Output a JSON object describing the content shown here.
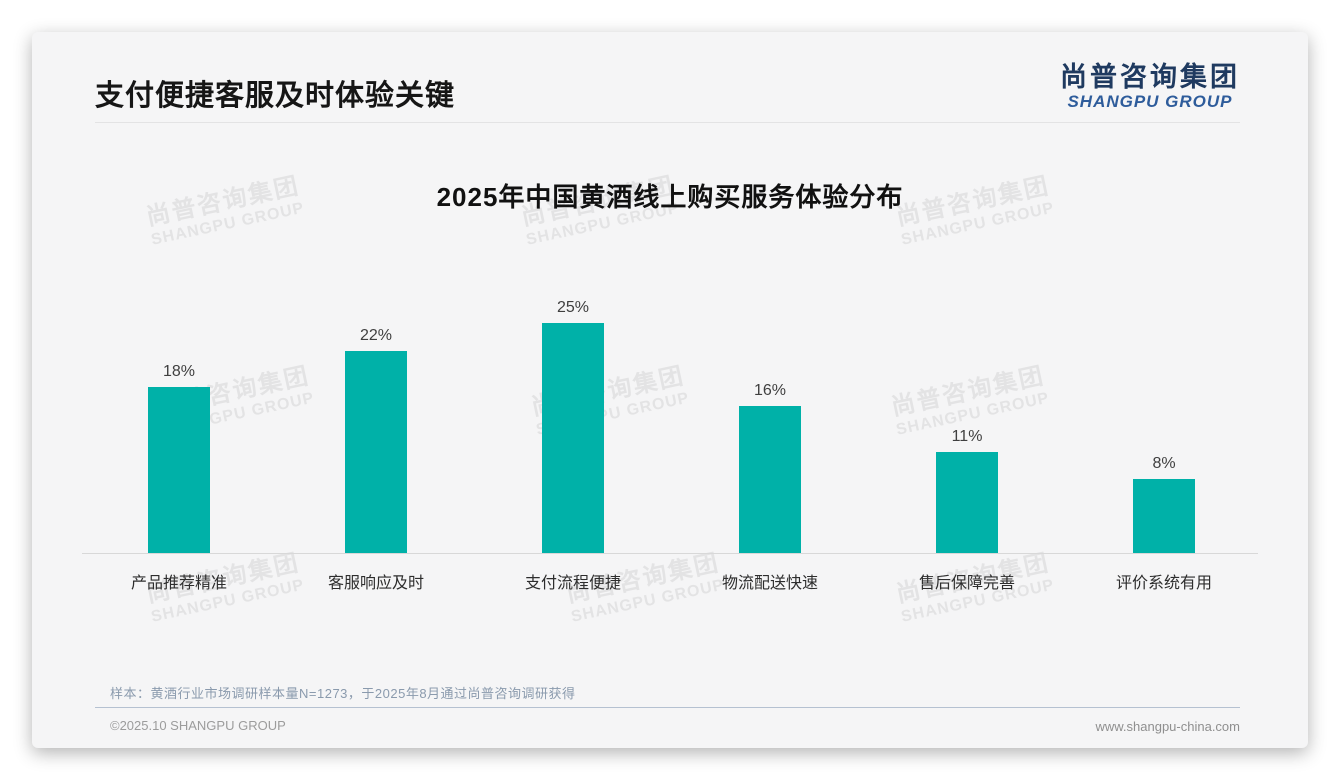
{
  "page": {
    "title": "支付便捷客服及时体验关键",
    "logo": {
      "cn": "尚普咨询集团",
      "en": "SHANGPU GROUP"
    },
    "watermark": {
      "line1": "尚普咨询集团",
      "line2": "SHANGPU GROUP"
    },
    "note": "样本：黄酒行业市场调研样本量N=1273，于2025年8月通过尚普咨询调研获得",
    "footer": {
      "copyright": "©2025.10 SHANGPU GROUP",
      "website": "www.shangpu-china.com"
    }
  },
  "colors": {
    "bar": "#00B1A8",
    "logo_cn": "#1f3a60",
    "logo_en": "#2e5c9b",
    "note_text": "#8a9aad",
    "card_bg": "#f5f5f6"
  },
  "chart_data": {
    "type": "bar",
    "title": "2025年中国黄酒线上购买服务体验分布",
    "categories": [
      "产品推荐精准",
      "客服响应及时",
      "支付流程便捷",
      "物流配送快速",
      "售后保障完善",
      "评价系统有用"
    ],
    "values": [
      18,
      22,
      25,
      16,
      11,
      8
    ],
    "value_labels": [
      "18%",
      "22%",
      "25%",
      "16%",
      "11%",
      "8%"
    ],
    "xlabel": "",
    "ylabel": "",
    "ylim": [
      0,
      28
    ],
    "unit": "%",
    "grid": false,
    "legend": false,
    "y_axis_visible": false,
    "bar_color": "#00B1A8"
  }
}
